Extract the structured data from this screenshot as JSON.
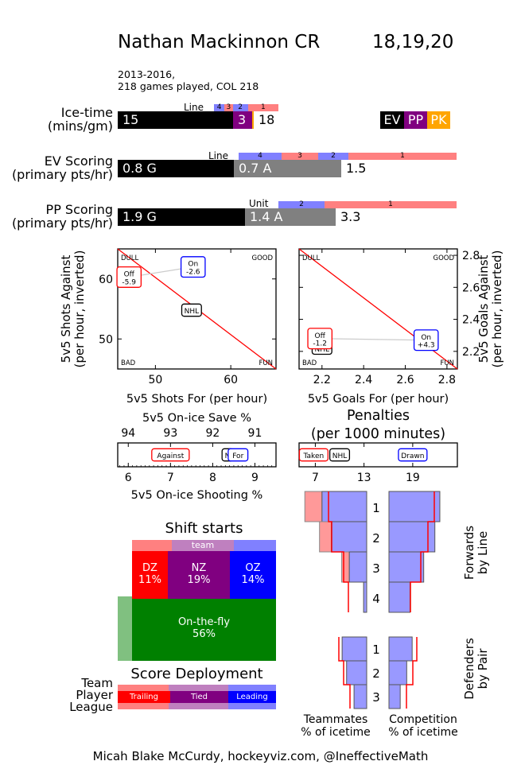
{
  "header": {
    "player": "Nathan Mackinnon CR",
    "seasons": "18,19,20",
    "span": "2013-2016,",
    "games": "218 games played, COL 218"
  },
  "icetime": {
    "label1": "Ice-time",
    "label2": "(mins/gm)",
    "ev": 15,
    "pp": 3,
    "pk": 0.1,
    "total": "18",
    "ev_text": "15",
    "pp_text": "3",
    "line_label": "Line",
    "lines": [
      {
        "name": "4",
        "share": 0.09
      },
      {
        "name": "3",
        "share": 0.07
      },
      {
        "name": "2",
        "share": 0.13
      },
      {
        "name": "1",
        "share": 0.26
      }
    ],
    "legend": [
      "EV",
      "PP",
      "PK"
    ],
    "colors": {
      "ev": "#000000",
      "pp": "#800080",
      "pk": "#FFA500"
    }
  },
  "ev_scoring": {
    "label1": "EV Scoring",
    "label2": "(primary pts/hr)",
    "goals": 0.8,
    "assists": 0.7,
    "total": "1.5",
    "goals_text": "0.8 G",
    "assists_text": "0.7 A",
    "line_label": "Line",
    "lines": [
      "4",
      "3",
      "2",
      "1"
    ]
  },
  "pp_scoring": {
    "label1": "PP Scoring",
    "label2": "(primary pts/hr)",
    "goals": 1.9,
    "assists": 1.4,
    "total": "3.3",
    "goals_text": "1.9 G",
    "assists_text": "1.4 A",
    "unit_label": "Unit",
    "units": [
      "2",
      "1"
    ]
  },
  "chart_data": [
    {
      "type": "scatter",
      "title": "",
      "xlabel": "5v5 Shots For (per hour)",
      "ylabel": "5v5 Shots Against\n(per hour, inverted)",
      "xlim": [
        45,
        66
      ],
      "ylim": [
        65,
        45
      ],
      "inverted_y": true,
      "xticks": [
        50,
        60
      ],
      "yticks": [
        50,
        60
      ],
      "corners": [
        "DULL",
        "GOOD",
        "BAD",
        "FUN"
      ],
      "points": [
        {
          "name": "NHL",
          "x": 54.8,
          "y": 54.8,
          "label": "NHL",
          "color": "#000000"
        },
        {
          "name": "Off",
          "x": 46.5,
          "y": 60.3,
          "label": "Off\n-5.9",
          "color": "#FF0000"
        },
        {
          "name": "On",
          "x": 55.0,
          "y": 62.0,
          "label": "On\n-2.6",
          "color": "#0000FF"
        }
      ]
    },
    {
      "type": "scatter",
      "xlabel": "5v5 Goals For (per hour)",
      "ylabel": "5v5 Goals Against\n(per hour, inverted)",
      "xlim": [
        2.09,
        2.85
      ],
      "ylim": [
        2.84,
        2.09
      ],
      "inverted_y": true,
      "xticks": [
        2.2,
        2.4,
        2.6,
        2.8
      ],
      "yticks": [
        2.2,
        2.4,
        2.6,
        2.8
      ],
      "corners": [
        "DULL",
        "GOOD",
        "BAD",
        "FUN"
      ],
      "points": [
        {
          "name": "NHL",
          "x": 2.2,
          "y": 2.22,
          "label": "NHL",
          "color": "#000000"
        },
        {
          "name": "Off",
          "x": 2.19,
          "y": 2.28,
          "label": "Off\n-1.2",
          "color": "#FF0000"
        },
        {
          "name": "On",
          "x": 2.7,
          "y": 2.27,
          "label": "On\n+4.3",
          "color": "#0000FF"
        }
      ]
    },
    {
      "type": "scatter",
      "title": "5v5 On-ice Save %",
      "xlabel": "5v5 On-ice Shooting %",
      "xlim": [
        5.75,
        9.5
      ],
      "top_ticks": [
        "94",
        "93",
        "92",
        "91"
      ],
      "xticks": [
        6,
        7,
        8,
        9
      ],
      "points": [
        {
          "name": "Against",
          "x": 7.0,
          "label": "Against",
          "color": "#FF0000"
        },
        {
          "name": "NHL",
          "x": 8.35,
          "label": "N",
          "color": "#000000"
        },
        {
          "name": "For",
          "x": 8.6,
          "label": "For",
          "color": "#0000FF"
        }
      ]
    },
    {
      "type": "scatter",
      "title": "Penalties\n(per 1000 minutes)",
      "xlim": [
        5.0,
        24.5
      ],
      "xticks": [
        7,
        13,
        19
      ],
      "points": [
        {
          "name": "Taken",
          "x": 6.8,
          "label": "Taken",
          "color": "#FF0000"
        },
        {
          "name": "NHL",
          "x": 10.0,
          "label": "NHL",
          "color": "#000000"
        },
        {
          "name": "Drawn",
          "x": 19.0,
          "label": "Drawn",
          "color": "#0000FF"
        }
      ]
    }
  ],
  "shift_starts": {
    "title": "Shift starts",
    "team_label": "team",
    "zones": [
      {
        "name": "DZ",
        "pct": "11%",
        "value": 11,
        "color": "#FF0000"
      },
      {
        "name": "NZ",
        "pct": "19%",
        "value": 19,
        "color": "#800080"
      },
      {
        "name": "OZ",
        "pct": "14%",
        "value": 14,
        "color": "#0000FF"
      }
    ],
    "otf": {
      "name": "On-the-fly",
      "pct": "56%",
      "value": 56,
      "color": "#008000"
    },
    "team_zones": [
      0.28,
      0.43,
      0.29
    ]
  },
  "score_deployment": {
    "title": "Score Deployment",
    "rows": [
      "Team",
      "Player",
      "League"
    ],
    "states": [
      {
        "name": "Trailing",
        "player": 0.37,
        "team": 0.35
      },
      {
        "name": "Tied",
        "player": 0.4,
        "team": 0.4
      },
      {
        "name": "Leading",
        "player": 0.23,
        "team": 0.25
      }
    ]
  },
  "deployment": {
    "forwards_label1": "Forwards",
    "forwards_label2": "by Line",
    "defenders_label1": "Defenders",
    "defenders_label2": "by Pair",
    "forward_lines": [
      "1",
      "2",
      "3",
      "4"
    ],
    "defense_pairs": [
      "1",
      "2",
      "3"
    ],
    "teammates_label1": "Teammates",
    "teammates_label2": "% of icetime",
    "competition_label1": "Competition",
    "competition_label2": "% of icetime",
    "fwd_teammates": [
      0.72,
      0.57,
      0.28,
      0.05
    ],
    "fwd_teammates_red": [
      0.99,
      0.68,
      0.44,
      0.01
    ],
    "fwd_competition": [
      0.82,
      0.74,
      0.56,
      0.34
    ],
    "def_teammates": [
      0.66,
      0.54,
      0.34
    ],
    "def_competition": [
      0.68,
      0.52,
      0.33
    ]
  },
  "footer": "Micah Blake McCurdy, hockeyviz.com, @IneffectiveMath"
}
